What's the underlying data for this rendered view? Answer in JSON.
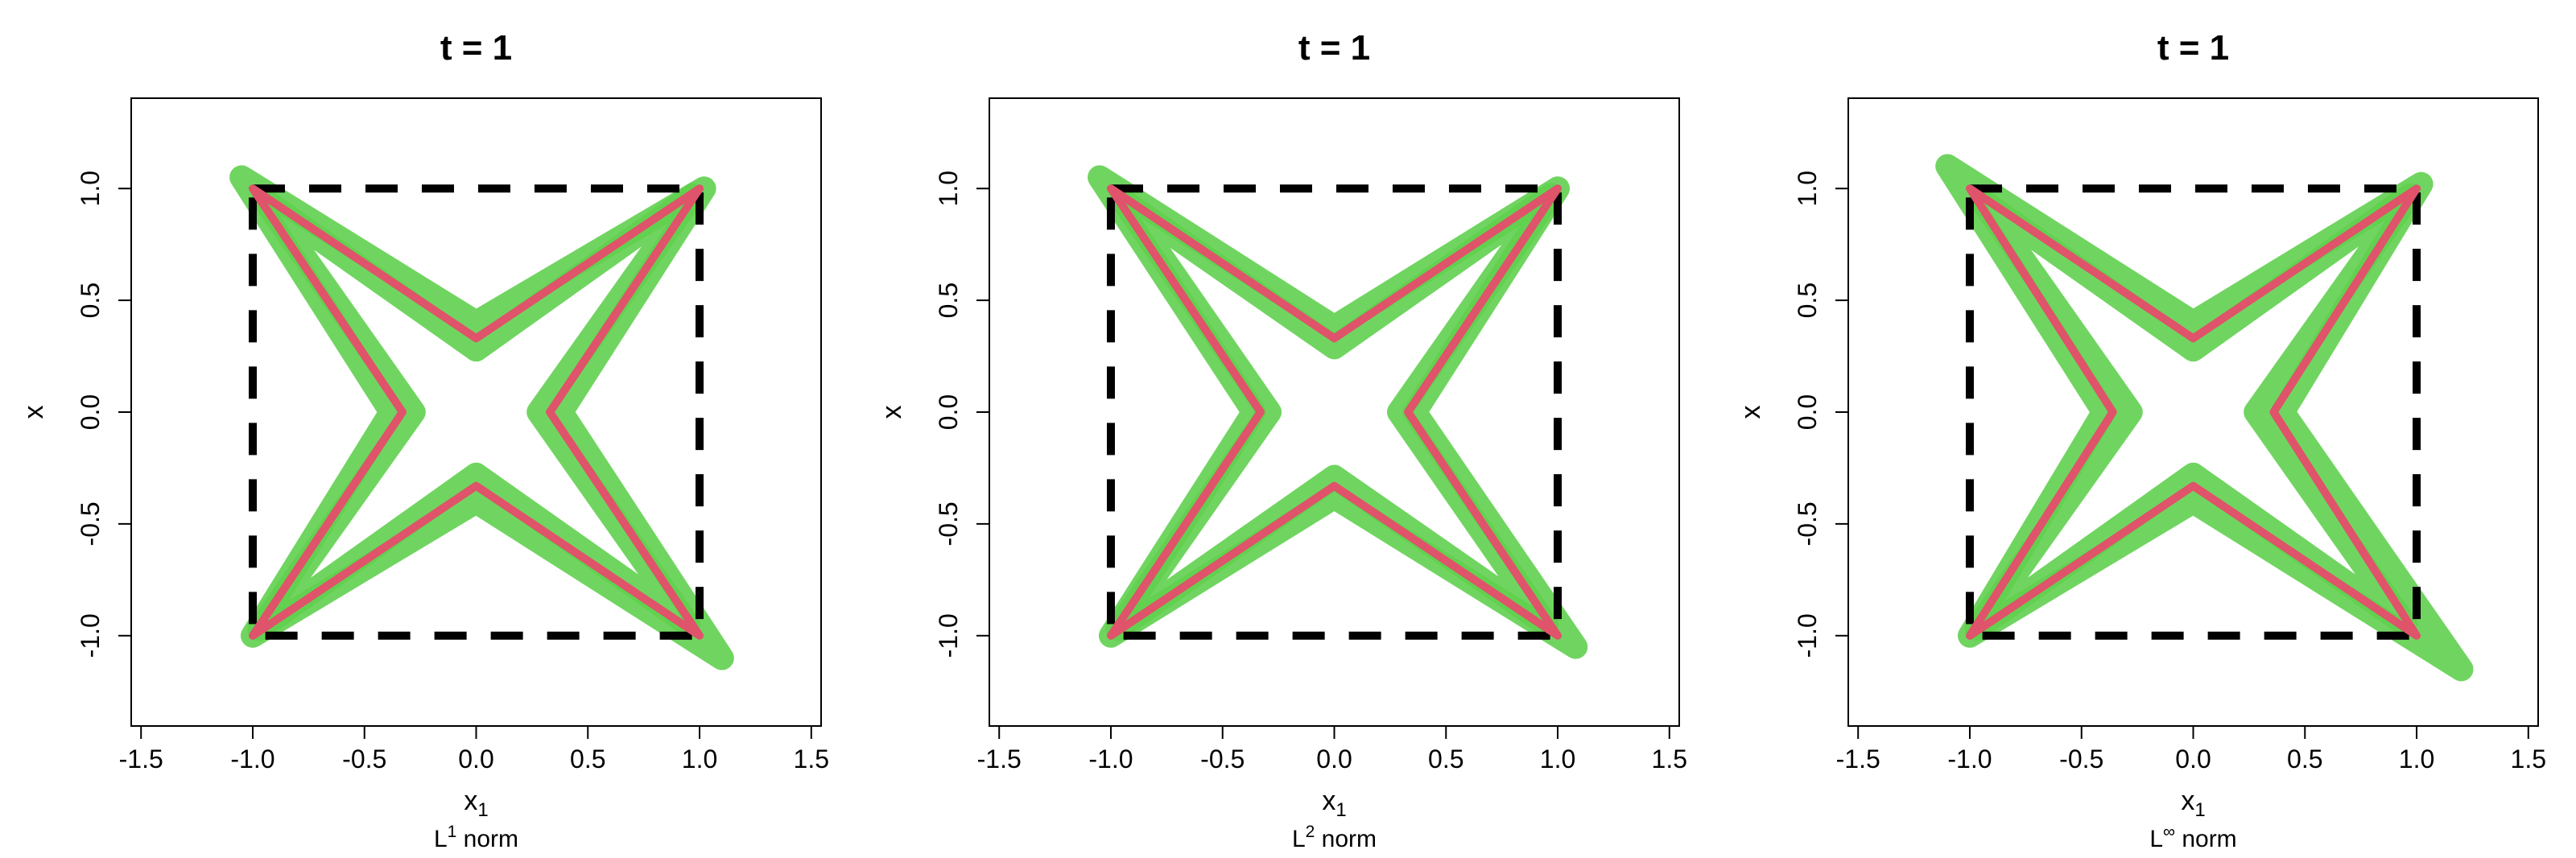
{
  "chart_data": [
    {
      "type": "line",
      "title": "t = 1",
      "xlabel": [
        "x",
        "1"
      ],
      "note": [
        "L",
        "1",
        " norm"
      ],
      "xlim": [
        -1.544,
        1.544
      ],
      "ylim": [
        -1.404,
        1.404
      ],
      "xticks": [
        {
          "value": -1.5,
          "label": "-1.5"
        },
        {
          "value": -1,
          "label": "-1.0"
        },
        {
          "value": -0.5,
          "label": "-0.5"
        },
        {
          "value": 0,
          "label": "0.0"
        },
        {
          "value": 0.5,
          "label": "0.5"
        },
        {
          "value": 1,
          "label": "1.0"
        },
        {
          "value": 1.5,
          "label": "1.5"
        }
      ],
      "yticks": [
        {
          "value": -1,
          "label": "-1.0"
        },
        {
          "value": -0.5,
          "label": "-0.5"
        },
        {
          "value": 0,
          "label": "0.0"
        },
        {
          "value": 0.5,
          "label": "0.5"
        },
        {
          "value": 1,
          "label": "1.0"
        }
      ],
      "series": [
        {
          "color": "#61d04f",
          "width": 30,
          "x": [
            1.02,
            0,
            -1.05,
            -0.38,
            -1.0,
            0,
            1.1,
            0.38,
            1.02
          ],
          "y": [
            1.0,
            0.4,
            1.05,
            0,
            -1.0,
            -0.4,
            -1.1,
            0,
            1.0
          ]
        },
        {
          "color": "#61d04f",
          "width": 30,
          "x": [
            0.97,
            0,
            -0.95,
            -0.28,
            -0.97,
            0,
            0.95,
            0.28,
            0.97
          ],
          "y": [
            0.97,
            0.28,
            0.95,
            0,
            -0.97,
            -0.28,
            -0.95,
            0,
            0.97
          ]
        },
        {
          "color": "#000000",
          "width": 10,
          "dashed": true,
          "x": [
            -1,
            1,
            1,
            -1,
            -1
          ],
          "y": [
            1,
            1,
            -1,
            -1,
            1
          ]
        },
        {
          "color": "#df536b",
          "width": 10,
          "x": [
            1,
            0,
            -1,
            -0.33,
            -1,
            0,
            1,
            0.33,
            1
          ],
          "y": [
            1,
            0.33,
            1,
            0,
            -1,
            -0.33,
            -1,
            0,
            1
          ]
        }
      ]
    },
    {
      "type": "line",
      "title": "t = 1",
      "xlabel": [
        "x",
        "1"
      ],
      "note": [
        "L",
        "2",
        " norm"
      ],
      "xlim": [
        -1.544,
        1.544
      ],
      "ylim": [
        -1.404,
        1.404
      ],
      "xticks": [
        {
          "value": -1.5,
          "label": "-1.5"
        },
        {
          "value": -1,
          "label": "-1.0"
        },
        {
          "value": -0.5,
          "label": "-0.5"
        },
        {
          "value": 0,
          "label": "0.0"
        },
        {
          "value": 0.5,
          "label": "0.5"
        },
        {
          "value": 1,
          "label": "1.0"
        },
        {
          "value": 1.5,
          "label": "1.5"
        }
      ],
      "yticks": [
        {
          "value": -1,
          "label": "-1.0"
        },
        {
          "value": -0.5,
          "label": "-0.5"
        },
        {
          "value": 0,
          "label": "0.0"
        },
        {
          "value": 0.5,
          "label": "0.5"
        },
        {
          "value": 1,
          "label": "1.0"
        }
      ],
      "series": [
        {
          "color": "#61d04f",
          "width": 30,
          "x": [
            1.0,
            0,
            -1.05,
            -0.36,
            -1.0,
            0,
            1.08,
            0.36,
            1.0
          ],
          "y": [
            1.0,
            0.38,
            1.05,
            0,
            -1.0,
            -0.38,
            -1.05,
            0,
            1.0
          ]
        },
        {
          "color": "#61d04f",
          "width": 30,
          "x": [
            0.97,
            0,
            -0.95,
            -0.29,
            -0.97,
            0,
            0.95,
            0.29,
            0.97
          ],
          "y": [
            0.97,
            0.29,
            0.95,
            0,
            -0.97,
            -0.29,
            -0.95,
            0,
            0.97
          ]
        },
        {
          "color": "#000000",
          "width": 10,
          "dashed": true,
          "x": [
            -1,
            1,
            1,
            -1,
            -1
          ],
          "y": [
            1,
            1,
            -1,
            -1,
            1
          ]
        },
        {
          "color": "#df536b",
          "width": 10,
          "x": [
            1,
            0,
            -1,
            -0.33,
            -1,
            0,
            1,
            0.33,
            1
          ],
          "y": [
            1,
            0.33,
            1,
            0,
            -1,
            -0.33,
            -1,
            0,
            1
          ]
        }
      ]
    },
    {
      "type": "line",
      "title": "t = 1",
      "xlabel": [
        "x",
        "1"
      ],
      "note": [
        "L",
        "∞",
        " norm"
      ],
      "xlim": [
        -1.544,
        1.544
      ],
      "ylim": [
        -1.404,
        1.404
      ],
      "xticks": [
        {
          "value": -1.5,
          "label": "-1.5"
        },
        {
          "value": -1,
          "label": "-1.0"
        },
        {
          "value": -0.5,
          "label": "-0.5"
        },
        {
          "value": 0,
          "label": "0.0"
        },
        {
          "value": 0.5,
          "label": "0.5"
        },
        {
          "value": 1,
          "label": "1.0"
        },
        {
          "value": 1.5,
          "label": "1.5"
        }
      ],
      "yticks": [
        {
          "value": -1,
          "label": "-1.0"
        },
        {
          "value": -0.5,
          "label": "-0.5"
        },
        {
          "value": 0,
          "label": "0.0"
        },
        {
          "value": 0.5,
          "label": "0.5"
        },
        {
          "value": 1,
          "label": "1.0"
        }
      ],
      "series": [
        {
          "color": "#61d04f",
          "width": 30,
          "x": [
            1.02,
            0,
            -1.1,
            -0.4,
            -1.0,
            0,
            1.2,
            0.4,
            1.02
          ],
          "y": [
            1.02,
            0.4,
            1.1,
            0,
            -1.0,
            -0.4,
            -1.15,
            0,
            1.02
          ]
        },
        {
          "color": "#61d04f",
          "width": 30,
          "x": [
            0.97,
            0,
            -0.95,
            -0.28,
            -0.97,
            0,
            0.95,
            0.28,
            0.97
          ],
          "y": [
            0.97,
            0.28,
            0.95,
            0,
            -0.97,
            -0.28,
            -0.95,
            0,
            0.97
          ]
        },
        {
          "color": "#000000",
          "width": 10,
          "dashed": true,
          "x": [
            -1,
            1,
            1,
            -1,
            -1
          ],
          "y": [
            1,
            1,
            -1,
            -1,
            1
          ]
        },
        {
          "color": "#df536b",
          "width": 10,
          "x": [
            1,
            0,
            -1,
            -0.36,
            -1,
            0,
            1,
            0.36,
            1
          ],
          "y": [
            1,
            0.33,
            1,
            0,
            -1,
            -0.33,
            -1,
            0,
            1
          ]
        }
      ]
    }
  ]
}
